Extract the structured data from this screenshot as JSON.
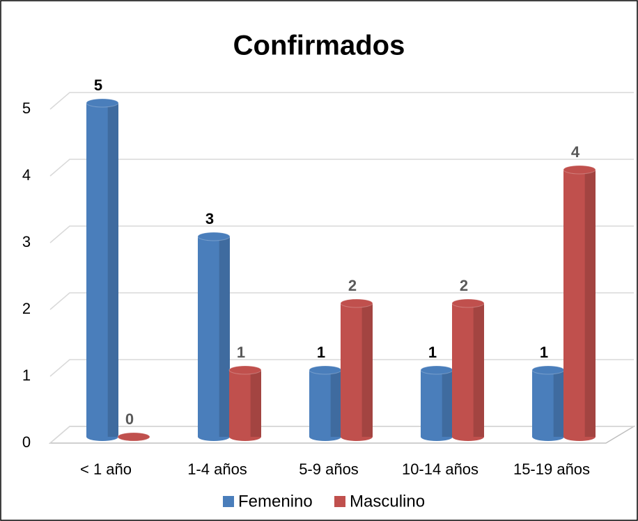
{
  "chart_data": {
    "type": "bar",
    "title": "Confirmados",
    "categories": [
      "< 1 año",
      "1-4 años",
      "5-9 años",
      "10-14 años",
      "15-19 años"
    ],
    "series": [
      {
        "name": "Femenino",
        "color": "#4a7ebb",
        "values": [
          5,
          3,
          1,
          1,
          1
        ]
      },
      {
        "name": "Masculino",
        "color": "#c0504d",
        "values": [
          0,
          1,
          2,
          2,
          4
        ]
      }
    ],
    "ylim": [
      0,
      5
    ],
    "yticks": [
      0,
      1,
      2,
      3,
      4,
      5
    ],
    "grid": true,
    "legend": "bottom"
  }
}
